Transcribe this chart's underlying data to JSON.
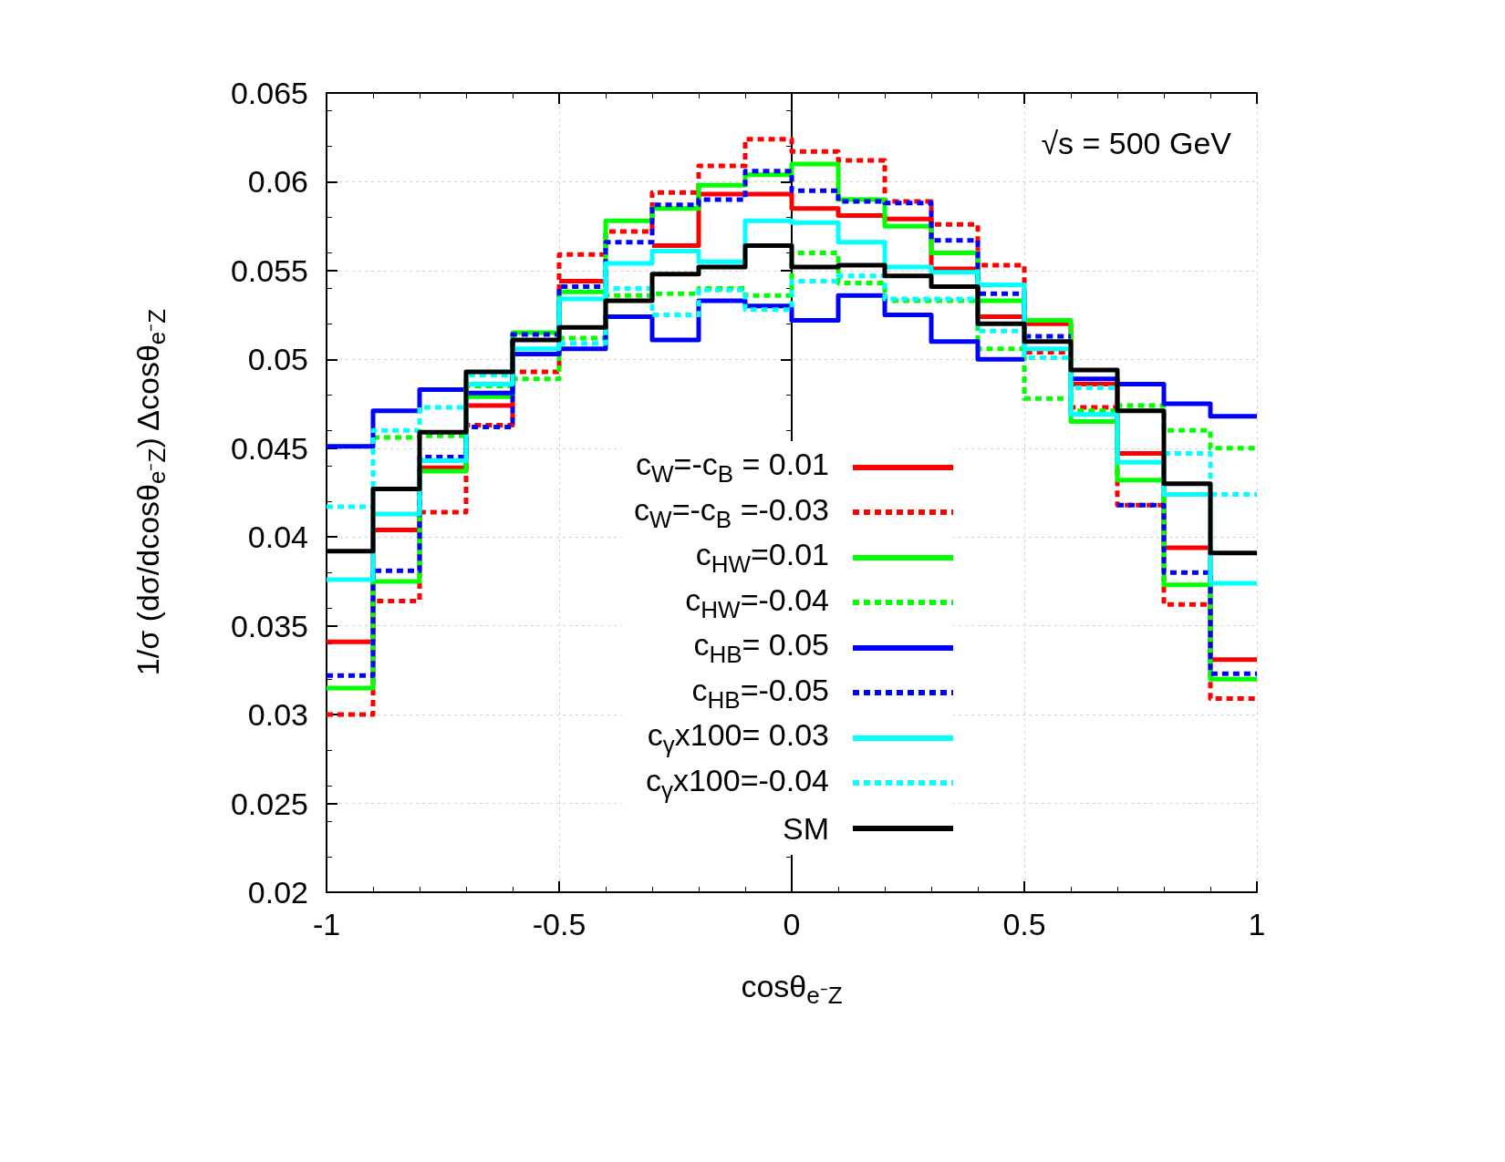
{
  "chart_data": {
    "type": "step",
    "xlabel": "cosθ$_{e⁻Z}$",
    "ylabel": "1/σ (dσ/dcosθ$_{e⁻Z}$) Δcosθ$_{e⁻Z}$",
    "annotations": [
      "√s = 500 GeV"
    ],
    "x": [
      -1,
      -0.9,
      -0.8,
      -0.7,
      -0.6,
      -0.5,
      -0.4,
      -0.3,
      -0.2,
      -0.1,
      0,
      0.1,
      0.2,
      0.3,
      0.4,
      0.5,
      0.6,
      0.7,
      0.8,
      0.9,
      1
    ],
    "xlim": [
      -1,
      1
    ],
    "xticks": [
      -1,
      -0.5,
      0,
      0.5,
      1
    ],
    "ylim": [
      0.02,
      0.065
    ],
    "yticks": [
      0.02,
      0.025,
      0.03,
      0.035,
      0.04,
      0.045,
      0.05,
      0.055,
      0.06,
      0.065
    ],
    "grid": true,
    "legend": "bottom",
    "series": [
      {
        "name": "c$_{W}$=-c$_{B}$ = 0.01",
        "color": "#ff0000",
        "line_style": "solid",
        "values": [
          0.0341,
          0.0404,
          0.0439,
          0.0474,
          null,
          0.0544,
          null,
          0.0564,
          0.0593,
          0.0593,
          0.0585,
          0.0581,
          0.0579,
          0.0551,
          0.0524,
          0.052,
          0.0486,
          0.0447,
          0.0394,
          0.0331,
          0.0331
        ]
      },
      {
        "name": "c$_{W}$=-c$_{B}$ =-0.03",
        "color": "#ff0000",
        "line_style": "dotted",
        "values": [
          0.03,
          0.0364,
          0.0414,
          0.0463,
          0.0493,
          0.0559,
          0.0572,
          0.0594,
          0.0609,
          0.0624,
          0.0617,
          0.0612,
          0.0589,
          0.0576,
          0.0553,
          0.0504,
          0.0473,
          0.0418,
          0.0362,
          0.0309,
          0.0309
        ]
      },
      {
        "name": "c$_{HW}$=0.01",
        "color": "#00ff00",
        "line_style": "solid",
        "values": [
          0.0315,
          0.0375,
          0.0437,
          0.0479,
          0.0515,
          0.0538,
          0.0578,
          0.0585,
          0.0598,
          0.0604,
          0.061,
          0.059,
          0.0575,
          0.056,
          0.0533,
          0.0522,
          0.0465,
          0.0432,
          0.0373,
          0.032,
          0.032
        ]
      },
      {
        "name": "c$_{HW}$=-0.04",
        "color": "#00ff00",
        "line_style": "dotted",
        "values": [
          null,
          0.0456,
          0.0457,
          0.0485,
          0.0489,
          0.0512,
          0.0536,
          0.0537,
          0.054,
          0.0536,
          0.056,
          0.0543,
          0.0533,
          0.0533,
          0.0506,
          0.0478,
          0.0471,
          0.0474,
          0.046,
          0.045,
          0.045
        ]
      },
      {
        "name": "c$_{HB}$= 0.05",
        "color": "#0000ff",
        "line_style": "solid",
        "values": [
          0.0451,
          0.0471,
          0.0483,
          0.0481,
          0.0503,
          0.0506,
          0.0524,
          0.0511,
          0.0533,
          0.053,
          0.0522,
          0.0536,
          0.0525,
          0.051,
          0.05,
          null,
          0.0489,
          0.0486,
          0.0475,
          0.0468,
          0.0468
        ]
      },
      {
        "name": "c$_{HB}$=-0.05",
        "color": "#0000ff",
        "line_style": "dotted",
        "values": [
          0.0322,
          0.0381,
          0.0445,
          0.0462,
          0.0514,
          0.0541,
          0.0566,
          0.0587,
          0.059,
          0.0606,
          0.0595,
          0.0589,
          0.0588,
          0.0567,
          0.0537,
          0.0513,
          null,
          0.0418,
          0.038,
          0.0323,
          0.0323
        ]
      },
      {
        "name": "c$_{γ}$x100= 0.03",
        "color": "#00ffff",
        "line_style": "solid",
        "values": [
          0.0376,
          0.0413,
          0.0443,
          0.0486,
          0.0506,
          0.0534,
          0.0554,
          0.0561,
          0.0555,
          0.0578,
          0.0577,
          0.0566,
          0.0552,
          0.0549,
          0.0542,
          0.0506,
          0.0469,
          0.0442,
          0.0424,
          0.0374,
          0.0374
        ]
      },
      {
        "name": "c$_{γ}$x100=-0.04",
        "color": "#00ffff",
        "line_style": "dotted",
        "values": [
          0.0417,
          0.046,
          0.0473,
          0.0491,
          null,
          0.0509,
          0.054,
          0.0525,
          0.0539,
          0.0528,
          0.0544,
          0.0547,
          0.0534,
          0.0534,
          0.0516,
          0.0501,
          0.0484,
          null,
          0.0447,
          0.0424,
          0.0424
        ]
      },
      {
        "name": "SM",
        "color": "#000000",
        "line_style": "solid",
        "values": [
          0.0392,
          0.0427,
          0.0459,
          0.0493,
          0.0511,
          0.0518,
          0.0533,
          0.0548,
          0.0552,
          0.0564,
          0.0552,
          0.0553,
          0.0547,
          0.0541,
          0.052,
          0.051,
          0.0494,
          0.0471,
          0.043,
          0.0391,
          0.0391
        ]
      }
    ]
  }
}
